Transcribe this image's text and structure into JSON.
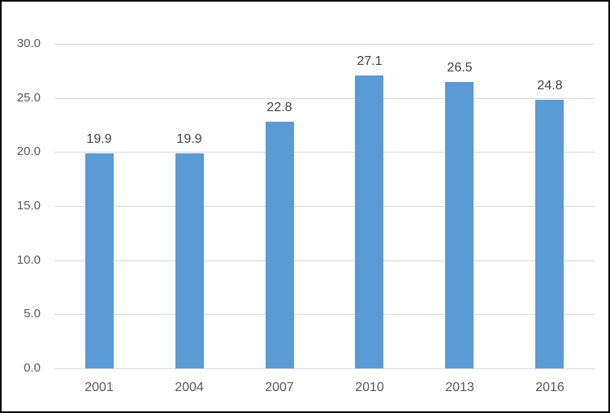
{
  "chart_data": {
    "type": "bar",
    "title": "",
    "xlabel": "",
    "ylabel": "",
    "categories": [
      "2001",
      "2004",
      "2007",
      "2010",
      "2013",
      "2016"
    ],
    "values": [
      19.9,
      19.9,
      22.8,
      27.1,
      26.5,
      24.8
    ],
    "value_labels": [
      "19.9",
      "19.9",
      "22.8",
      "27.1",
      "26.5",
      "24.8"
    ],
    "ylim": [
      0,
      30
    ],
    "yticks": [
      0,
      5,
      10,
      15,
      20,
      25,
      30
    ],
    "ytick_labels": [
      "0.0",
      "5.0",
      "10.0",
      "15.0",
      "20.0",
      "25.0",
      "30.0"
    ],
    "grid": true,
    "legend": false,
    "colors": {
      "bar": "#5B9BD5",
      "gridline": "#D9D9D9",
      "axis_line": "#D9D9D9",
      "tick_text": "#595959",
      "value_label_text": "#404040",
      "frame_border": "#000000",
      "background": "#FFFFFF"
    }
  }
}
